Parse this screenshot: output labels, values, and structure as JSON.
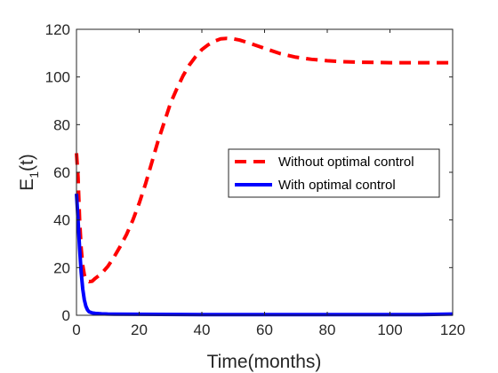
{
  "chart_data": {
    "type": "line",
    "title": "",
    "xlabel": "Time(months)",
    "ylabel_main": "E",
    "ylabel_sub": "1",
    "ylabel_tail": "(t)",
    "xlim": [
      0,
      120
    ],
    "ylim": [
      0,
      120
    ],
    "xticks": [
      0,
      20,
      40,
      60,
      80,
      100,
      120
    ],
    "yticks": [
      0,
      20,
      40,
      60,
      80,
      100,
      120
    ],
    "grid": false,
    "legend_position": "right",
    "series": [
      {
        "name": "Without optimal control",
        "color": "#ff0000",
        "style": "dashed",
        "x": [
          0,
          0.5,
          1,
          1.5,
          2,
          2.5,
          3,
          3.5,
          4,
          5,
          6,
          8,
          10,
          12,
          14,
          16,
          18,
          20,
          22,
          24,
          26,
          28,
          30,
          32,
          34,
          36,
          38,
          40,
          42,
          44,
          46,
          48,
          50,
          52,
          55,
          60,
          65,
          70,
          75,
          80,
          85,
          90,
          95,
          100,
          105,
          110,
          115,
          120
        ],
        "y": [
          68,
          58,
          40,
          28,
          21,
          17,
          15,
          14.4,
          14.1,
          14.3,
          15.5,
          17.5,
          20.5,
          24.5,
          29,
          34,
          40,
          47,
          55,
          64,
          73,
          81,
          89,
          95,
          100.5,
          105,
          108.5,
          111.5,
          113.5,
          115,
          116,
          116.2,
          116,
          115.5,
          114.3,
          112,
          109.8,
          108.3,
          107.4,
          106.8,
          106.4,
          106.2,
          106.1,
          106,
          106,
          106,
          106,
          106
        ]
      },
      {
        "name": "With optimal control",
        "color": "#0000ff",
        "style": "solid",
        "x": [
          0,
          0.5,
          1,
          1.5,
          2,
          2.5,
          3,
          3.5,
          4,
          5,
          6,
          8,
          10,
          20,
          40,
          60,
          80,
          100,
          110,
          120
        ],
        "y": [
          51,
          40,
          28,
          18,
          11,
          6.5,
          3.8,
          2.3,
          1.5,
          1,
          0.8,
          0.6,
          0.5,
          0.4,
          0.3,
          0.3,
          0.3,
          0.3,
          0.3,
          0.5
        ]
      }
    ]
  }
}
